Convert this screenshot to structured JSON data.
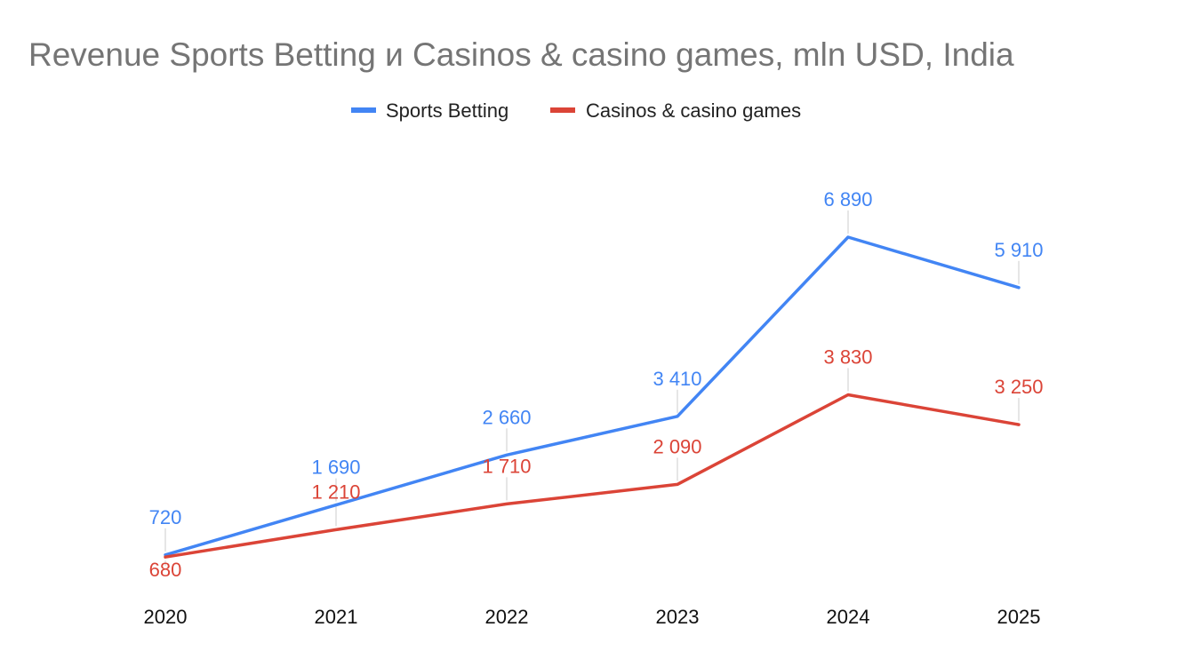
{
  "chart_data": {
    "type": "line",
    "title": "Revenue Sports Betting и Casinos & casino games, mln USD, India",
    "xlabel": "",
    "ylabel": "",
    "categories": [
      "2020",
      "2021",
      "2022",
      "2023",
      "2024",
      "2025"
    ],
    "ylim": [
      500,
      7500
    ],
    "grid": false,
    "legend_position": "top-center",
    "series": [
      {
        "name": "Sports Betting",
        "color": "#4285f4",
        "values": [
          720,
          1690,
          2660,
          3410,
          6890,
          5910
        ],
        "labels": [
          "720",
          "1 690",
          "2 660",
          "3 410",
          "6 890",
          "5 910"
        ]
      },
      {
        "name": "Casinos & casino games",
        "color": "#db4437",
        "values": [
          680,
          1210,
          1710,
          2090,
          3830,
          3250
        ],
        "labels": [
          "680",
          "1 210",
          "1 710",
          "2 090",
          "3 830",
          "3 250"
        ]
      }
    ]
  }
}
